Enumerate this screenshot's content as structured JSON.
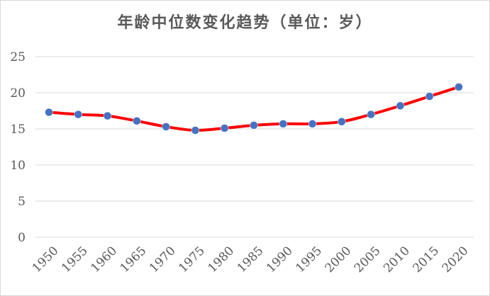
{
  "chart_data": {
    "type": "line",
    "title": "年龄中位数变化趋势（单位：岁）",
    "x": [
      "1950",
      "1955",
      "1960",
      "1965",
      "1970",
      "1975",
      "1980",
      "1985",
      "1990",
      "1995",
      "2000",
      "2005",
      "2010",
      "2015",
      "2020"
    ],
    "series": [
      {
        "values": [
          17.3,
          17.0,
          16.8,
          16.1,
          15.3,
          14.8,
          15.1,
          15.5,
          15.7,
          15.7,
          16.0,
          17.0,
          18.2,
          19.5,
          20.8
        ]
      }
    ],
    "yticks": [
      0,
      5,
      10,
      15,
      20,
      25
    ],
    "ylim": [
      0,
      25
    ],
    "grid": true,
    "legend": "none",
    "smooth": true,
    "colors": {
      "line": "#ff0000",
      "marker": "#4472c4"
    }
  }
}
